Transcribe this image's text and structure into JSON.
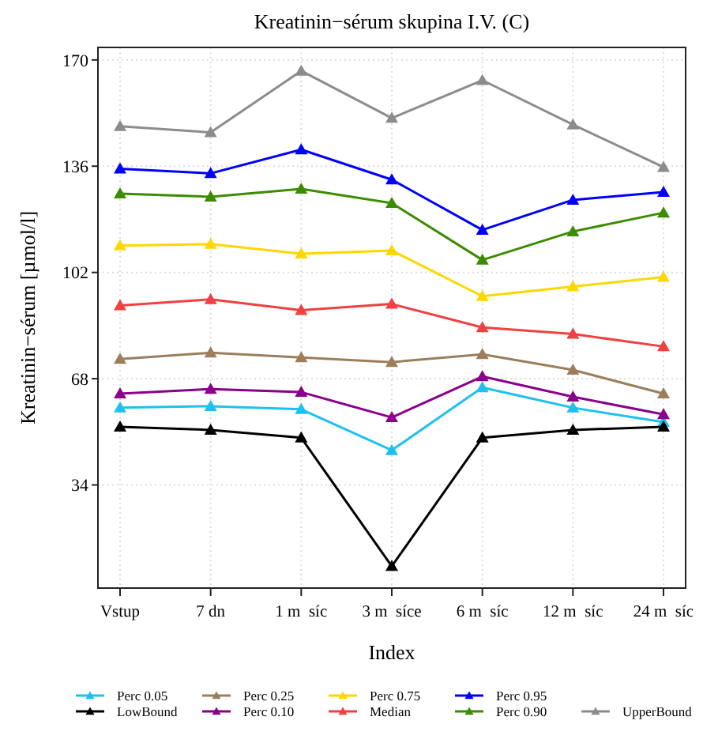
{
  "chart_data": {
    "type": "line",
    "title": "Kreatinin−sérum skupina I.V. (C)",
    "xlabel": "Index",
    "ylabel": "Kreatinin−sérum [µmol/l]",
    "categories": [
      "Vstup",
      "7 dn",
      "1 m  síc",
      "3 m  síce",
      "6 m  síc",
      "12 m  síc",
      "24 m  síc"
    ],
    "ylim": [
      1,
      174
    ],
    "yticks": [
      34,
      68,
      102,
      136,
      170
    ],
    "grid": true,
    "legend": "bottom",
    "marker": "triangle",
    "line_style": "solid",
    "series": [
      {
        "name": "Perc 0.05",
        "color": "#1ec0f0",
        "values": [
          58.7,
          59.2,
          58.2,
          45.1,
          65.2,
          58.7,
          54.1
        ]
      },
      {
        "name": "Perc 0.25",
        "color": "#9c7e5c",
        "values": [
          74.3,
          76.3,
          74.8,
          73.3,
          75.8,
          70.8,
          63.2
        ]
      },
      {
        "name": "Perc 0.75",
        "color": "#ffd700",
        "values": [
          110.6,
          111.1,
          108,
          109,
          94.4,
          97.5,
          100.5
        ]
      },
      {
        "name": "Perc 0.95",
        "color": "#0000ff",
        "values": [
          135.2,
          133.7,
          141.3,
          131.7,
          115.6,
          125.2,
          127.7
        ]
      },
      {
        "name": "LowBound",
        "color": "#000000",
        "values": [
          52.6,
          51.6,
          49.1,
          8,
          49.1,
          51.6,
          52.6
        ]
      },
      {
        "name": "Perc 0.10",
        "color": "#8b008b",
        "values": [
          63.2,
          64.7,
          63.7,
          55.6,
          68.7,
          62.2,
          56.6
        ]
      },
      {
        "name": "Median",
        "color": "#f04040",
        "values": [
          91.4,
          93.4,
          89.9,
          91.9,
          84.4,
          82.3,
          78.3
        ]
      },
      {
        "name": "Perc 0.90",
        "color": "#3c8c00",
        "values": [
          127.2,
          126.2,
          128.7,
          124.2,
          106,
          115.1,
          121.1
        ]
      },
      {
        "name": "UpperBound",
        "color": "#8c8c8c",
        "values": [
          148.8,
          146.8,
          166.5,
          151.4,
          163.5,
          149.3,
          135.7
        ]
      }
    ]
  }
}
